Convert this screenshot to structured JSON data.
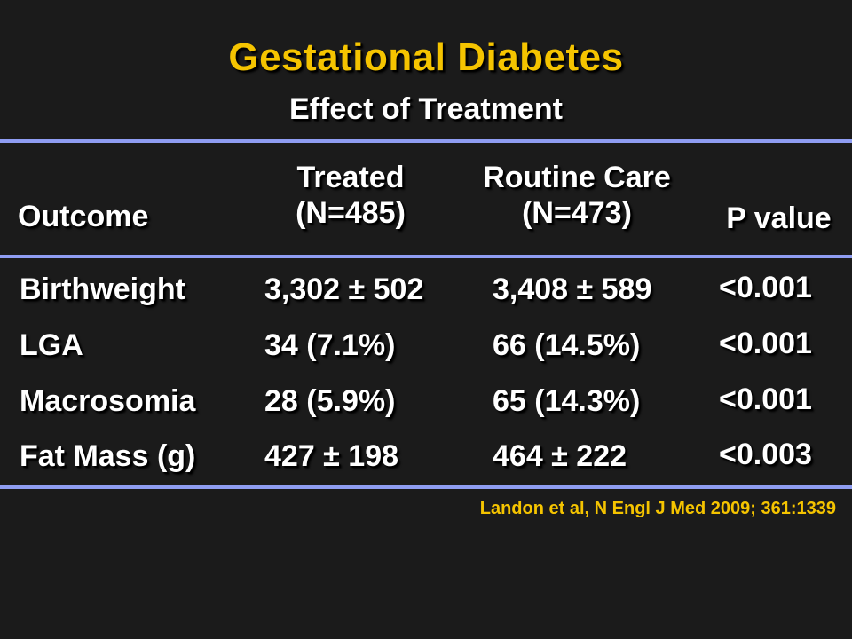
{
  "slide": {
    "title": "Gestational Diabetes",
    "subtitle": "Effect of Treatment",
    "headers": {
      "outcome": "Outcome",
      "treated_line1": "Treated",
      "treated_line2": "(N=485)",
      "routine_line1": "Routine Care",
      "routine_line2": "(N=473)",
      "pvalue": "P value"
    },
    "rows": [
      {
        "outcome": "Birthweight",
        "treated": "3,302 ± 502",
        "routine": "3,408 ± 589",
        "p": "<0.001"
      },
      {
        "outcome": "LGA",
        "treated": "34 (7.1%)",
        "routine": "66 (14.5%)",
        "p": "<0.001"
      },
      {
        "outcome": "Macrosomia",
        "treated": "28 (5.9%)",
        "routine": "65 (14.3%)",
        "p": "<0.001"
      },
      {
        "outcome": "Fat Mass (g)",
        "treated": "427 ± 198",
        "routine": "464 ± 222",
        "p": "<0.003"
      }
    ],
    "citation": "Landon et al, N Engl J Med 2009; 361:1339",
    "colors": {
      "title": "#f5c400",
      "citation": "#f5c400",
      "rule": "#8f9df2",
      "background": "#1b1b1b",
      "text": "#ffffff"
    }
  }
}
